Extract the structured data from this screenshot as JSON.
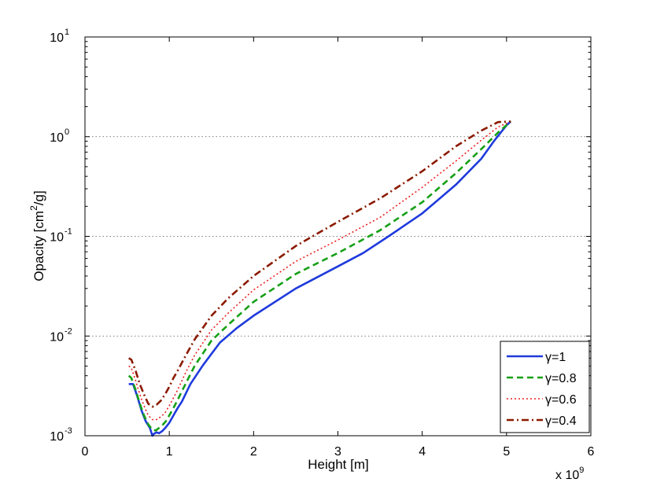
{
  "chart_data": {
    "type": "line",
    "title": "",
    "xlabel": "Height [m]",
    "ylabel_base": "Opacity [cm",
    "ylabel_sup": "2",
    "ylabel_tail": "/g]",
    "x_multiplier_base": "x 10",
    "x_multiplier_exp": "9",
    "xlim": [
      0,
      6
    ],
    "ylim": [
      0.001,
      10
    ],
    "yscale": "log",
    "grid": "horizontal-dotted",
    "legend_position": "bottom-right",
    "x_ticks": [
      {
        "value": 0,
        "label": "0"
      },
      {
        "value": 1,
        "label": "1"
      },
      {
        "value": 2,
        "label": "2"
      },
      {
        "value": 3,
        "label": "3"
      },
      {
        "value": 4,
        "label": "4"
      },
      {
        "value": 5,
        "label": "5"
      },
      {
        "value": 6,
        "label": "6"
      }
    ],
    "y_ticks": [
      {
        "value": 0.001,
        "base": "10",
        "exp": "-3"
      },
      {
        "value": 0.01,
        "base": "10",
        "exp": "-2"
      },
      {
        "value": 0.1,
        "base": "10",
        "exp": "-1"
      },
      {
        "value": 1,
        "base": "10",
        "exp": "0"
      },
      {
        "value": 10,
        "base": "10",
        "exp": "1"
      }
    ],
    "series": [
      {
        "name": "γ=1",
        "color": "#1f3bdc",
        "dash": "solid",
        "x": [
          0.52,
          0.57,
          0.62,
          0.67,
          0.72,
          0.77,
          0.8,
          0.82,
          0.85,
          0.88,
          0.92,
          0.96,
          1.0,
          1.05,
          1.1,
          1.15,
          1.25,
          1.4,
          1.6,
          1.8,
          2.0,
          2.5,
          3.0,
          3.3,
          3.6,
          4.0,
          4.4,
          4.7,
          4.85,
          5.0,
          5.05
        ],
        "y": [
          0.0033,
          0.0033,
          0.0025,
          0.0018,
          0.0014,
          0.0012,
          0.001,
          0.00105,
          0.00108,
          0.00106,
          0.00112,
          0.00122,
          0.00135,
          0.0016,
          0.0019,
          0.0022,
          0.0033,
          0.0051,
          0.0086,
          0.012,
          0.016,
          0.03,
          0.05,
          0.068,
          0.1,
          0.17,
          0.33,
          0.6,
          0.9,
          1.3,
          1.42
        ]
      },
      {
        "name": "γ=0.8",
        "color": "#16a016",
        "dash": "dashed",
        "x": [
          0.52,
          0.55,
          0.6,
          0.65,
          0.7,
          0.75,
          0.8,
          0.84,
          0.88,
          0.92,
          0.96,
          1.0,
          1.05,
          1.1,
          1.2,
          1.3,
          1.5,
          1.7,
          2.0,
          2.5,
          3.0,
          3.5,
          4.0,
          4.4,
          4.7,
          4.9,
          5.05
        ],
        "y": [
          0.004,
          0.0038,
          0.0029,
          0.0021,
          0.0016,
          0.0013,
          0.00115,
          0.00113,
          0.0012,
          0.00128,
          0.0014,
          0.0016,
          0.0019,
          0.0023,
          0.0034,
          0.005,
          0.009,
          0.013,
          0.022,
          0.042,
          0.068,
          0.115,
          0.22,
          0.43,
          0.75,
          1.1,
          1.42
        ]
      },
      {
        "name": "γ=0.6",
        "color": "#ee2020",
        "dash": "dotted",
        "x": [
          0.52,
          0.55,
          0.6,
          0.65,
          0.7,
          0.75,
          0.8,
          0.85,
          0.9,
          0.95,
          1.0,
          1.05,
          1.1,
          1.2,
          1.3,
          1.5,
          1.7,
          2.0,
          2.5,
          3.0,
          3.5,
          4.0,
          4.4,
          4.7,
          4.9,
          5.05
        ],
        "y": [
          0.005,
          0.0048,
          0.0036,
          0.0026,
          0.002,
          0.0016,
          0.00145,
          0.00145,
          0.00155,
          0.0017,
          0.002,
          0.0024,
          0.0029,
          0.0044,
          0.0064,
          0.0115,
          0.017,
          0.029,
          0.056,
          0.092,
          0.155,
          0.31,
          0.57,
          0.92,
          1.25,
          1.42
        ]
      },
      {
        "name": "γ=0.4",
        "color": "#8b1a00",
        "dash": "dashdot",
        "x": [
          0.52,
          0.55,
          0.6,
          0.65,
          0.7,
          0.75,
          0.8,
          0.85,
          0.9,
          0.95,
          1.0,
          1.05,
          1.1,
          1.2,
          1.3,
          1.5,
          1.7,
          2.0,
          2.5,
          3.0,
          3.5,
          4.0,
          4.4,
          4.7,
          4.9,
          5.05
        ],
        "y": [
          0.006,
          0.0058,
          0.0045,
          0.0033,
          0.0026,
          0.0021,
          0.00195,
          0.00205,
          0.00225,
          0.0026,
          0.0031,
          0.0038,
          0.0045,
          0.0065,
          0.0092,
          0.016,
          0.024,
          0.04,
          0.08,
          0.14,
          0.24,
          0.45,
          0.8,
          1.15,
          1.4,
          1.42
        ]
      }
    ]
  }
}
